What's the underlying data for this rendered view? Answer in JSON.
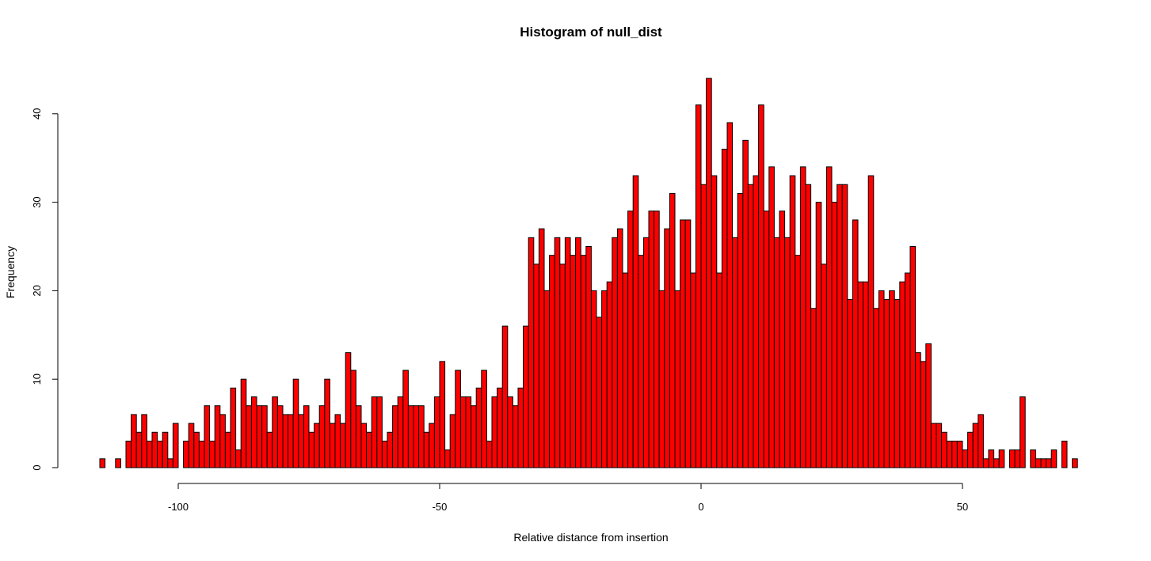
{
  "chart_data": {
    "type": "bar",
    "title": "Histogram of null_dist",
    "xlabel": "Relative distance from insertion",
    "ylabel": "Frequency",
    "bar_color": "#ff0000",
    "bar_border_color": "#000000",
    "x_start": -115,
    "bin_width": 1,
    "values": [
      1,
      0,
      0,
      1,
      0,
      3,
      6,
      4,
      6,
      3,
      4,
      3,
      4,
      1,
      5,
      0,
      3,
      5,
      4,
      3,
      7,
      3,
      7,
      6,
      4,
      9,
      2,
      10,
      7,
      8,
      7,
      7,
      4,
      8,
      7,
      6,
      6,
      10,
      6,
      7,
      4,
      5,
      7,
      10,
      5,
      6,
      5,
      13,
      11,
      7,
      5,
      4,
      8,
      8,
      3,
      4,
      7,
      8,
      11,
      7,
      7,
      7,
      4,
      5,
      8,
      12,
      2,
      6,
      11,
      8,
      8,
      7,
      9,
      11,
      3,
      8,
      9,
      16,
      8,
      7,
      9,
      16,
      26,
      23,
      27,
      20,
      24,
      26,
      23,
      26,
      24,
      26,
      24,
      25,
      20,
      17,
      20,
      21,
      26,
      27,
      22,
      29,
      33,
      24,
      26,
      29,
      29,
      20,
      27,
      31,
      20,
      28,
      28,
      22,
      41,
      32,
      44,
      33,
      22,
      36,
      39,
      26,
      31,
      37,
      32,
      33,
      41,
      29,
      34,
      26,
      29,
      26,
      33,
      24,
      34,
      32,
      18,
      30,
      23,
      34,
      30,
      32,
      32,
      19,
      28,
      21,
      21,
      33,
      18,
      20,
      19,
      20,
      19,
      21,
      22,
      25,
      13,
      12,
      14,
      5,
      5,
      4,
      3,
      3,
      3,
      2,
      4,
      5,
      6,
      1,
      2,
      1,
      2,
      0,
      2,
      2,
      8,
      0,
      2,
      1,
      1,
      1,
      2,
      0,
      3,
      0,
      1
    ],
    "x_ticks": [
      -100,
      -50,
      0,
      50
    ],
    "x_tick_labels": [
      "-100",
      "-50",
      "0",
      "50"
    ],
    "y_ticks": [
      0,
      10,
      20,
      30,
      40
    ],
    "y_tick_labels": [
      "0",
      "10",
      "20",
      "30",
      "40"
    ],
    "xlim": [
      -115,
      72
    ],
    "ylim": [
      0,
      44
    ]
  }
}
